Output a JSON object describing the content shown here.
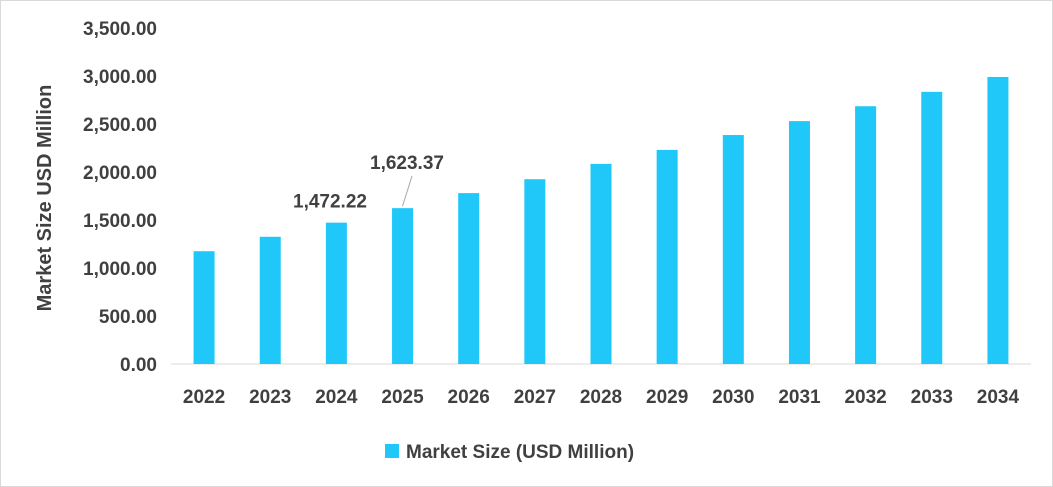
{
  "chart_data": {
    "type": "bar",
    "categories": [
      "2022",
      "2023",
      "2024",
      "2025",
      "2026",
      "2027",
      "2028",
      "2029",
      "2030",
      "2031",
      "2032",
      "2033",
      "2034"
    ],
    "series": [
      {
        "name": "Market Size (USD Million)",
        "values": [
          1175,
          1325,
          1472.22,
          1623.37,
          1780,
          1925,
          2085,
          2230,
          2385,
          2530,
          2685,
          2835,
          2990
        ]
      }
    ],
    "ylabel": "Market Size USD Million",
    "xlabel": "",
    "ylim": [
      0,
      3500
    ],
    "yticks": [
      0,
      500,
      1000,
      1500,
      2000,
      2500,
      3000,
      3500
    ],
    "ytick_labels": [
      "0.00",
      "500.00",
      "1,000.00",
      "1,500.00",
      "2,000.00",
      "2,500.00",
      "3,000.00",
      "3,500.00"
    ],
    "data_labels": [
      {
        "category": "2024",
        "text": "1,472.22"
      },
      {
        "category": "2025",
        "text": "1,623.37"
      }
    ],
    "grid": false,
    "legend_position": "bottom",
    "bar_color": "#1fc8f9"
  }
}
